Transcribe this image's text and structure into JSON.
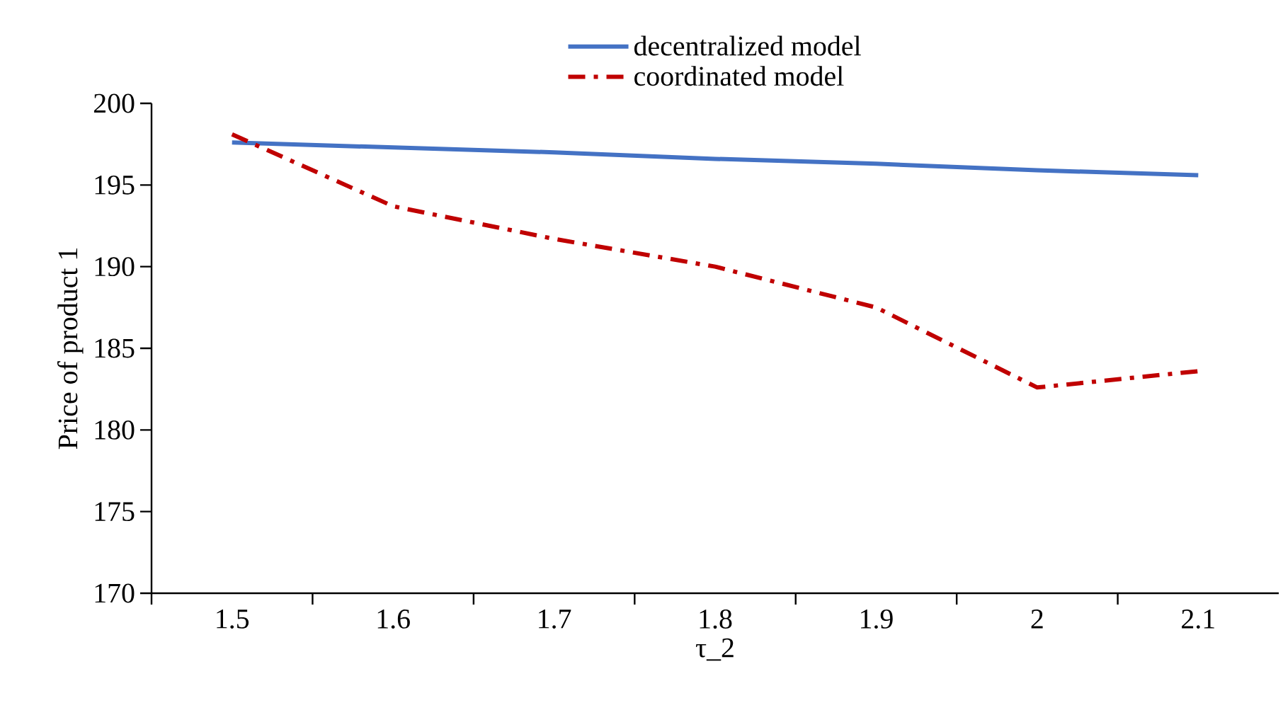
{
  "chart_data": {
    "type": "line",
    "xlabel": "τ_2",
    "ylabel": "Price of product 1",
    "categories": [
      "1.5",
      "1.6",
      "1.7",
      "1.8",
      "1.9",
      "2",
      "2.1"
    ],
    "series": [
      {
        "name": "decentralized model",
        "color": "#4472c4",
        "line_style": "solid",
        "values": [
          197.6,
          197.3,
          197.0,
          196.6,
          196.3,
          195.9,
          195.6
        ]
      },
      {
        "name": "coordinated model",
        "color": "#c00000",
        "line_style": "dashdot",
        "values": [
          198.1,
          193.7,
          191.7,
          190.0,
          187.5,
          182.6,
          183.6
        ]
      }
    ],
    "ylim": [
      170,
      200
    ],
    "yticks": [
      170,
      175,
      180,
      185,
      190,
      195,
      200
    ],
    "grid": false,
    "legend": "top"
  }
}
